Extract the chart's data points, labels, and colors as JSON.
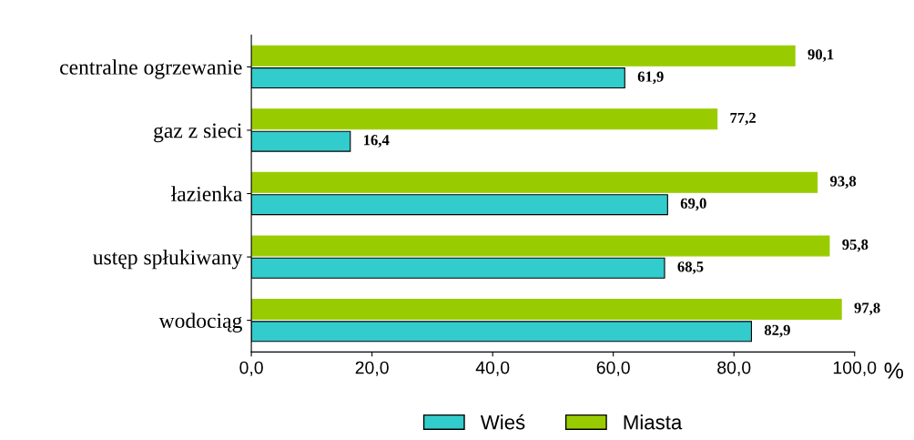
{
  "chart_data": {
    "type": "bar",
    "orientation": "horizontal",
    "categories": [
      "centralne ogrzewanie",
      "gaz z sieci",
      "łazienka",
      "ustęp spłukiwany",
      "wodociąg"
    ],
    "series": [
      {
        "name": "Wieś",
        "color": "#33cccc",
        "values": [
          61.9,
          16.4,
          69.0,
          68.5,
          82.9
        ],
        "value_labels": [
          "61,9",
          "16,4",
          "69,0",
          "68,5",
          "82,9"
        ]
      },
      {
        "name": "Miasta",
        "color": "#99cc00",
        "values": [
          90.1,
          77.2,
          93.8,
          95.8,
          97.8
        ],
        "value_labels": [
          "90,1",
          "77,2",
          "93,8",
          "95,8",
          "97,8"
        ]
      }
    ],
    "xlim": [
      0,
      100
    ],
    "xticks": [
      {
        "value": 0,
        "label": "0,0"
      },
      {
        "value": 20,
        "label": "20,0"
      },
      {
        "value": 40,
        "label": "40,0"
      },
      {
        "value": 60,
        "label": "60,0"
      },
      {
        "value": 80,
        "label": "80,0"
      },
      {
        "value": 100,
        "label": "100,0"
      }
    ],
    "xlabel": "%",
    "legend": "bottom",
    "grid": false
  }
}
